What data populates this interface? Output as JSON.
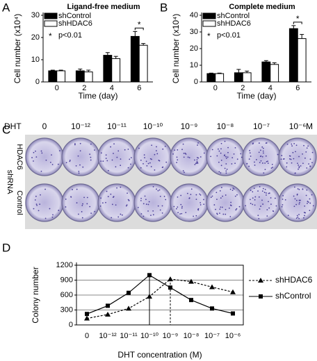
{
  "panel_labels": [
    "A",
    "B",
    "C",
    "D"
  ],
  "chart_data": [
    {
      "type": "bar",
      "title": "Ligand-free medium",
      "x_label": "Time (day)",
      "y_label": "Cell number (x10⁴)",
      "categories": [
        "0",
        "2",
        "4",
        "6"
      ],
      "series": [
        {
          "name": "shControl",
          "color": "#000000",
          "values": [
            5,
            5,
            12,
            20.5
          ],
          "errors": [
            0.3,
            0.8,
            1.2,
            2.2
          ]
        },
        {
          "name": "shHDAC6",
          "color": "#ffffff",
          "values": [
            5,
            4.5,
            10.5,
            16.5
          ],
          "errors": [
            0.3,
            0.8,
            1,
            0.8
          ]
        }
      ],
      "ylim": [
        0,
        30
      ],
      "yticks": [
        0,
        10,
        20,
        30
      ],
      "significance_label": "*",
      "annotation": {
        "symbol": "*",
        "text": "p<0.01"
      }
    },
    {
      "type": "bar",
      "title": "Complete medium",
      "x_label": "Time (day)",
      "y_label": "Cell number (x10⁴)",
      "categories": [
        "0",
        "2",
        "4",
        "6"
      ],
      "series": [
        {
          "name": "shControl",
          "color": "#000000",
          "values": [
            5,
            5.5,
            12,
            32
          ],
          "errors": [
            0.3,
            2,
            0.8,
            1.8
          ]
        },
        {
          "name": "shHDAC6",
          "color": "#ffffff",
          "values": [
            5,
            5.5,
            10.5,
            26
          ],
          "errors": [
            0.3,
            1,
            1,
            2.5
          ]
        }
      ],
      "ylim": [
        0,
        40
      ],
      "yticks": [
        0,
        10,
        20,
        30,
        40
      ],
      "significance_label": "*",
      "annotation": {
        "symbol": "*",
        "text": "p<0.01"
      }
    },
    {
      "type": "line",
      "x_label": "DHT concentration (M)",
      "y_label": "Colony number",
      "categories": [
        "0",
        "10⁻¹²",
        "10⁻¹¹",
        "10⁻¹⁰",
        "10⁻⁹",
        "10⁻⁸",
        "10⁻⁷",
        "10⁻⁶"
      ],
      "series": [
        {
          "name": "shHDAC6",
          "color": "#000000",
          "line_style": "dashed",
          "marker": "triangle",
          "values": [
            130,
            210,
            330,
            570,
            920,
            870,
            760,
            660
          ]
        },
        {
          "name": "shControl",
          "color": "#000000",
          "line_style": "solid",
          "marker": "square",
          "values": [
            220,
            385,
            645,
            1000,
            750,
            500,
            330,
            230
          ]
        }
      ],
      "ylim": [
        0,
        1200
      ],
      "yticks": [
        0,
        300,
        600,
        900,
        1200
      ],
      "grid": true
    }
  ],
  "plate_panel": {
    "treatment": "DHT",
    "concentrations": [
      "0",
      "10⁻¹²",
      "10⁻¹¹",
      "10⁻¹⁰",
      "10⁻⁹",
      "10⁻⁸",
      "10⁻⁷",
      "10⁻⁶"
    ],
    "unit": "M",
    "group_label": "shRNA",
    "rows": [
      "HDAC6",
      "Control"
    ]
  }
}
